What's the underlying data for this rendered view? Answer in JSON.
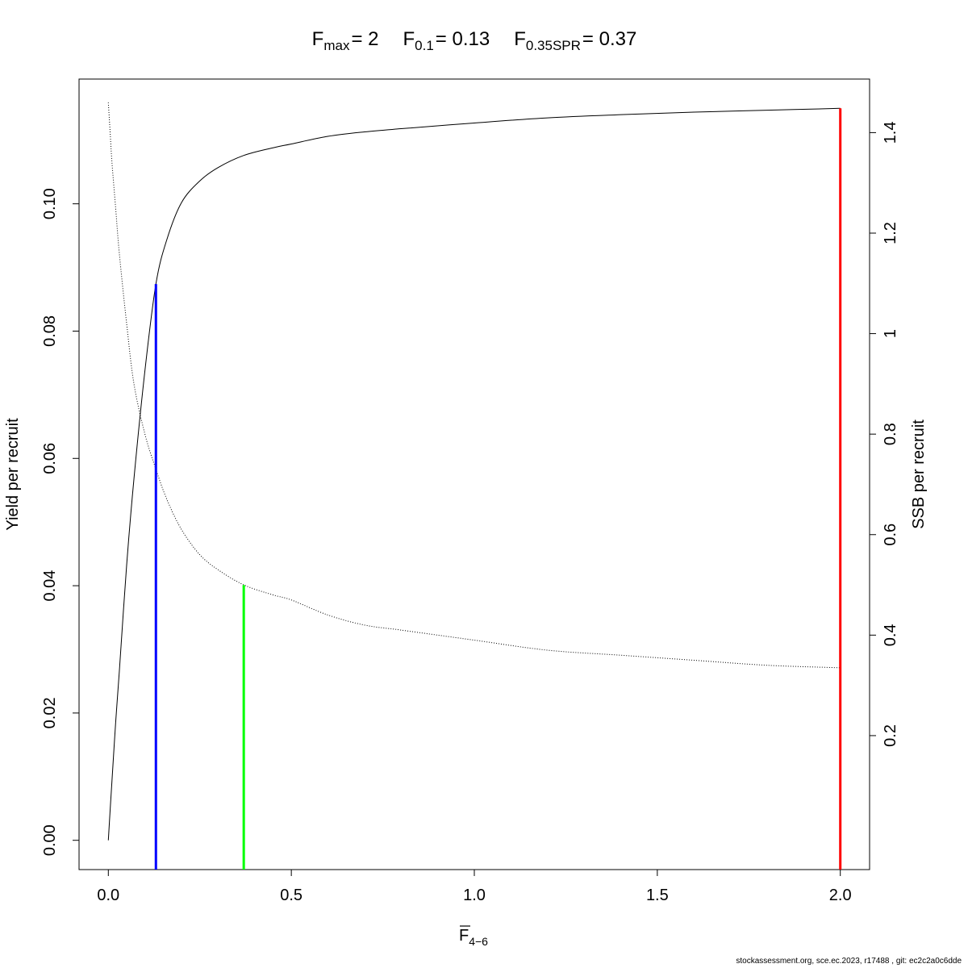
{
  "chart_data": {
    "type": "line",
    "title": {
      "fmax_label": "F",
      "fmax_sub": "max",
      "fmax_value": "= 2",
      "f01_label": "F",
      "f01_sub": "0.1",
      "f01_value": "= 0.13",
      "fspr_label": "F",
      "fspr_sub": "0.35SPR",
      "fspr_value": "= 0.37"
    },
    "xlabel": {
      "main": "F",
      "sub": "4−6"
    },
    "ylabel": "Yield per recruit",
    "y2label": "SSB per recruit",
    "xlim": [
      -0.08,
      2.08
    ],
    "ylim": [
      -0.0046,
      0.1196
    ],
    "y2lim": [
      -0.0666,
      1.5066
    ],
    "x_ticks": [
      0.0,
      0.5,
      1.0,
      1.5,
      2.0
    ],
    "x_tick_labels": [
      "0.0",
      "0.5",
      "1.0",
      "1.5",
      "2.0"
    ],
    "y_ticks": [
      0.0,
      0.02,
      0.04,
      0.06,
      0.08,
      0.1
    ],
    "y_tick_labels": [
      "0.00",
      "0.02",
      "0.04",
      "0.06",
      "0.08",
      "0.10"
    ],
    "y2_ticks": [
      0.2,
      0.4,
      0.6,
      0.8,
      1.0,
      1.2,
      1.4
    ],
    "y2_tick_labels": [
      "0.2",
      "0.4",
      "0.6",
      "0.8",
      "1",
      "1.2",
      "1.4"
    ],
    "series": [
      {
        "name": "Yield per recruit",
        "axis": "left",
        "style": "solid",
        "color": "#000000",
        "x": [
          0.0,
          0.005,
          0.01,
          0.02,
          0.03,
          0.05,
          0.07,
          0.1,
          0.13,
          0.16,
          0.2,
          0.25,
          0.3,
          0.37,
          0.45,
          0.5,
          0.6,
          0.7,
          0.8,
          1.0,
          1.2,
          1.4,
          1.6,
          1.8,
          2.0
        ],
        "y": [
          0.0,
          0.0048,
          0.0094,
          0.0185,
          0.0265,
          0.0432,
          0.0568,
          0.0738,
          0.0874,
          0.0944,
          0.1002,
          0.1036,
          0.1057,
          0.1076,
          0.1088,
          0.1094,
          0.1106,
          0.1113,
          0.1118,
          0.1127,
          0.1135,
          0.114,
          0.1144,
          0.1147,
          0.115
        ]
      },
      {
        "name": "SSB per recruit",
        "axis": "right",
        "style": "dotted",
        "color": "#000000",
        "x": [
          0.0,
          0.005,
          0.01,
          0.02,
          0.03,
          0.05,
          0.07,
          0.1,
          0.13,
          0.16,
          0.2,
          0.25,
          0.3,
          0.37,
          0.45,
          0.5,
          0.6,
          0.7,
          0.8,
          1.0,
          1.2,
          1.4,
          1.6,
          1.8,
          2.0
        ],
        "y": [
          1.46,
          1.4,
          1.34,
          1.25,
          1.16,
          1.02,
          0.9,
          0.8,
          0.73,
          0.67,
          0.61,
          0.56,
          0.53,
          0.5,
          0.48,
          0.47,
          0.44,
          0.42,
          0.41,
          0.39,
          0.37,
          0.36,
          0.35,
          0.34,
          0.335
        ]
      }
    ],
    "reference_lines": [
      {
        "name": "Fmax",
        "x": 2.0,
        "y_top": 0.115,
        "color": "#ff0000"
      },
      {
        "name": "F0.1",
        "x": 0.13,
        "y_top": 0.0874,
        "color": "#0000ff"
      },
      {
        "name": "F0.35SPR",
        "x": 0.37,
        "y_top": 0.0401,
        "color": "#00ff00"
      }
    ],
    "grid": false,
    "legend": "none"
  },
  "footer": "stockassessment.org, sce.ec.2023, r17488 , git: ec2c2a0c6dde"
}
